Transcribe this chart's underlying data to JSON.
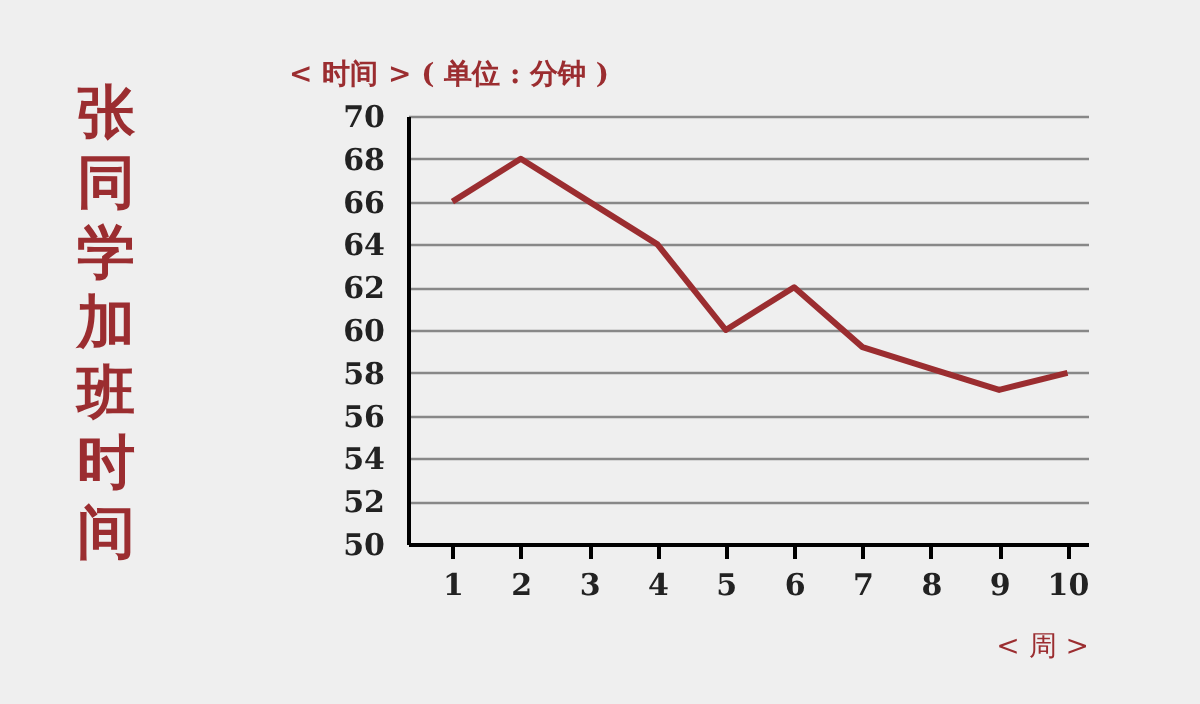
{
  "chart_data": {
    "type": "line",
    "title": "张同学加班时间",
    "ylabel": "< 时间 > ( 单位 : 分钟 )",
    "xlabel": "< 周 >",
    "x": [
      1,
      2,
      3,
      4,
      5,
      6,
      7,
      8,
      9,
      10
    ],
    "series": [
      {
        "color": "#9b2d30",
        "values": [
          66,
          68,
          66,
          64,
          60,
          62,
          59.2,
          58.2,
          57.2,
          58
        ]
      }
    ],
    "xlim": [
      0.35,
      10.3
    ],
    "xticks": [
      1,
      2,
      3,
      4,
      5,
      6,
      7,
      8,
      9,
      10
    ],
    "ylim": [
      50,
      70
    ],
    "yticks": [
      50,
      52,
      54,
      56,
      58,
      60,
      62,
      64,
      66,
      68,
      70
    ],
    "grid": "y",
    "marker": "none",
    "line_style": "solid"
  }
}
